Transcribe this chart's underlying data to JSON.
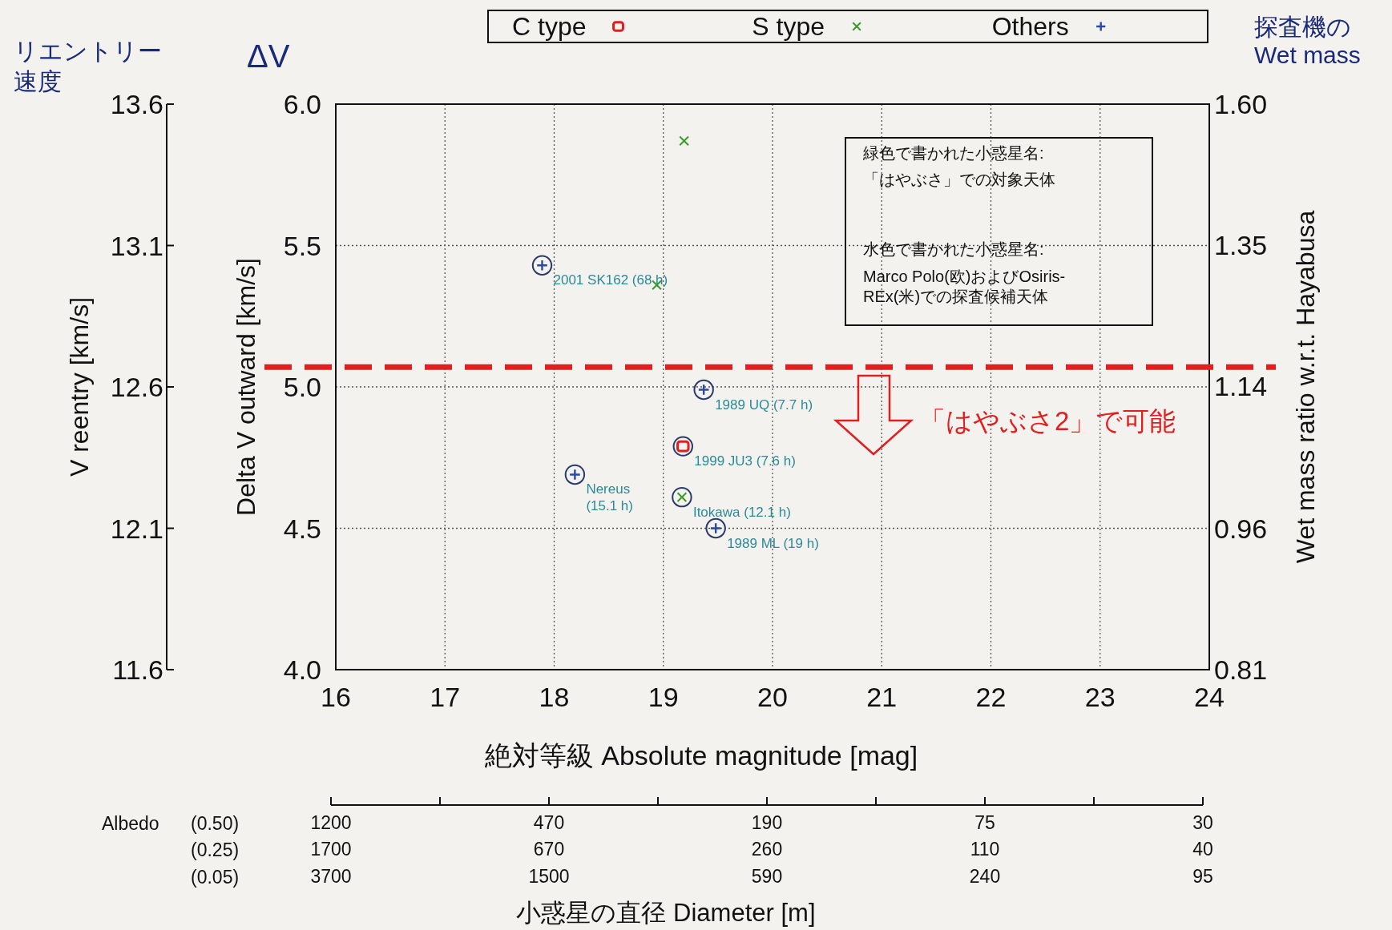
{
  "chart_data": {
    "type": "scatter",
    "xlabel": "絶対等級 Absolute magnitude [mag]",
    "ylabel": "Delta V outward [km/s]",
    "y2label": "Wet mass ratio w.r.t. Hayabusa",
    "y3label": "V reentry [km/s]",
    "xlim": [
      16,
      24
    ],
    "xticks": [
      16,
      17,
      18,
      19,
      20,
      21,
      22,
      23,
      24
    ],
    "ylim": [
      4,
      6
    ],
    "yticks": [
      {
        "value": 4,
        "label": "4.0"
      },
      {
        "value": 4.5,
        "label": "4.5"
      },
      {
        "value": 5,
        "label": "5.0"
      },
      {
        "value": 5.5,
        "label": "5.5"
      },
      {
        "value": 6,
        "label": "6.0"
      }
    ],
    "y2lim": [
      0.81,
      1.6
    ],
    "y2ticks": [
      0.81,
      0.96,
      1.14,
      1.35,
      {
        "value": 1.6,
        "label": "1.60"
      }
    ],
    "y3lim": [
      11.6,
      13.6
    ],
    "y3ticks": [
      11.6,
      12.1,
      12.6,
      13.1,
      13.6
    ],
    "log": "y2",
    "grid": true,
    "legend": "top",
    "series": [
      {
        "name": "C type",
        "color": "#e02020",
        "marker": "square",
        "x": [
          19.18
        ],
        "values": [
          4.79
        ]
      },
      {
        "name": "S type",
        "color": "#3a9a2a",
        "marker": "cross",
        "x": [
          19.19,
          18.94,
          19.17
        ],
        "values": [
          5.87,
          5.36,
          4.61
        ]
      },
      {
        "name": "Others",
        "color": "#2a4aa0",
        "marker": "plus",
        "x": [
          17.89,
          19.37,
          18.19,
          19.48
        ],
        "values": [
          5.43,
          4.99,
          4.69,
          4.5
        ]
      },
      {
        "color": "#2a3a6a",
        "marker": "circle",
        "x": [
          17.89,
          19.37,
          19.18,
          18.19,
          19.17,
          19.48
        ],
        "values": [
          5.43,
          4.99,
          4.79,
          4.69,
          4.61,
          4.5
        ]
      }
    ],
    "ref_lines": [
      {
        "axis": "y",
        "value": 5.07,
        "color": "#e02020",
        "line_style": "dashed"
      }
    ],
    "annotations": [
      "リエントリー",
      "速度",
      "ΔV",
      "探査機の\nWet mass",
      "緑色で書かれた小惑星名:",
      "「はやぶさ」での対象天体",
      "水色で書かれた小惑星名:",
      "Marco Polo(欧)およびOsiris-",
      "REx(米)での探査候補天体",
      "「はやぶさ2」で可能",
      "Albedo",
      "(0.50)\n(0.25)\n(0.05)",
      "1200\n1700\n3700",
      "470\n670\n1500",
      "190\n260\n590",
      "75\n110\n240",
      "30\n40\n95",
      "小惑星の直径 Diameter [m]",
      {
        "text": "2001 SK162 (68 h)",
        "x": 17.89,
        "y": 5.43
      },
      {
        "text": "1989 UQ (7.7 h)",
        "x": 19.37,
        "y": 4.99
      },
      {
        "text": "1999 JU3 (7.6 h)",
        "x": 19.18,
        "y": 4.79
      },
      {
        "text": "Nereus\n(15.1 h)",
        "x": 18.19,
        "y": 4.69
      },
      {
        "text": "Itokawa (12.1 h)",
        "x": 19.17,
        "y": 4.61
      },
      {
        "text": "1989 ML (19 h)",
        "x": 19.48,
        "y": 4.5
      }
    ]
  }
}
